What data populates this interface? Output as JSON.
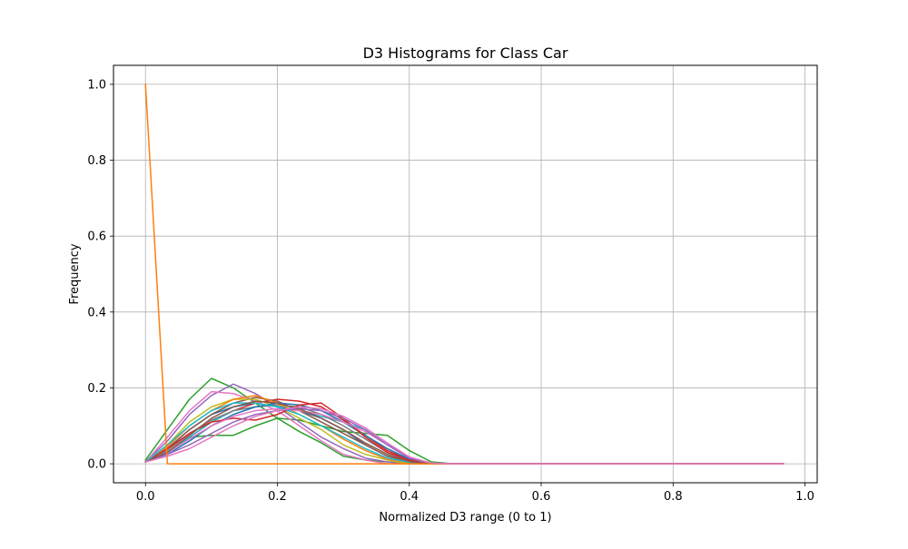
{
  "chart_data": {
    "type": "line",
    "title": "D3 Histograms for Class Car",
    "xlabel": "Normalized D3 range (0 to 1)",
    "ylabel": "Frequency",
    "xlim": [
      -0.0485,
      1.0185
    ],
    "ylim": [
      -0.05,
      1.05
    ],
    "xticks": [
      0.0,
      0.2,
      0.4,
      0.6,
      0.8,
      1.0
    ],
    "xtick_labels": [
      "0.0",
      "0.2",
      "0.4",
      "0.6",
      "0.8",
      "1.0"
    ],
    "yticks": [
      0.0,
      0.2,
      0.4,
      0.6,
      0.8,
      1.0
    ],
    "ytick_labels": [
      "0.0",
      "0.2",
      "0.4",
      "0.6",
      "0.8",
      "1.0"
    ],
    "grid": true,
    "legend": "none",
    "x": [
      0.0,
      0.0333,
      0.0667,
      0.1,
      0.1333,
      0.1667,
      0.2,
      0.2333,
      0.2667,
      0.3,
      0.3333,
      0.3667,
      0.4,
      0.4333,
      0.4667,
      0.5,
      0.5333,
      0.5667,
      0.6,
      0.6333,
      0.6667,
      0.7,
      0.7333,
      0.7667,
      0.8,
      0.8333,
      0.8667,
      0.9,
      0.9333,
      0.9667
    ],
    "series": [
      {
        "color": "#1f77b4",
        "values": [
          0.005,
          0.04,
          0.09,
          0.13,
          0.15,
          0.16,
          0.15,
          0.14,
          0.12,
          0.09,
          0.05,
          0.02,
          0.005,
          0,
          0,
          0,
          0,
          0,
          0,
          0,
          0,
          0,
          0,
          0,
          0,
          0,
          0,
          0,
          0,
          0
        ]
      },
      {
        "color": "#2ca02c",
        "values": [
          0.01,
          0.09,
          0.17,
          0.225,
          0.2,
          0.16,
          0.12,
          0.085,
          0.055,
          0.02,
          0.01,
          0.005,
          0,
          0,
          0,
          0,
          0,
          0,
          0,
          0,
          0,
          0,
          0,
          0,
          0,
          0,
          0,
          0,
          0,
          0
        ]
      },
      {
        "color": "#2ca02c",
        "values": [
          0.005,
          0.03,
          0.07,
          0.075,
          0.075,
          0.1,
          0.12,
          0.115,
          0.1,
          0.085,
          0.08,
          0.075,
          0.035,
          0.005,
          0,
          0,
          0,
          0,
          0,
          0,
          0,
          0,
          0,
          0,
          0,
          0,
          0,
          0,
          0,
          0
        ]
      },
      {
        "color": "#9467bd",
        "values": [
          0.005,
          0.06,
          0.13,
          0.18,
          0.21,
          0.185,
          0.15,
          0.11,
          0.07,
          0.04,
          0.015,
          0.005,
          0,
          0,
          0,
          0,
          0,
          0,
          0,
          0,
          0,
          0,
          0,
          0,
          0,
          0,
          0,
          0,
          0,
          0
        ]
      },
      {
        "color": "#d62728",
        "values": [
          0.005,
          0.03,
          0.07,
          0.11,
          0.14,
          0.16,
          0.17,
          0.165,
          0.15,
          0.115,
          0.075,
          0.035,
          0.01,
          0,
          0,
          0,
          0,
          0,
          0,
          0,
          0,
          0,
          0,
          0,
          0,
          0,
          0,
          0,
          0,
          0
        ]
      },
      {
        "color": "#e377c2",
        "values": [
          0.005,
          0.07,
          0.14,
          0.19,
          0.185,
          0.165,
          0.14,
          0.1,
          0.06,
          0.025,
          0.01,
          0,
          0,
          0,
          0,
          0,
          0,
          0,
          0,
          0,
          0,
          0,
          0,
          0,
          0,
          0,
          0,
          0,
          0,
          0
        ]
      },
      {
        "color": "#17becf",
        "values": [
          0.005,
          0.03,
          0.07,
          0.11,
          0.14,
          0.15,
          0.155,
          0.14,
          0.125,
          0.11,
          0.09,
          0.05,
          0.015,
          0,
          0,
          0,
          0,
          0,
          0,
          0,
          0,
          0,
          0,
          0,
          0,
          0,
          0,
          0,
          0,
          0
        ]
      },
      {
        "color": "#8c564b",
        "values": [
          0.005,
          0.04,
          0.09,
          0.13,
          0.16,
          0.175,
          0.165,
          0.14,
          0.11,
          0.08,
          0.05,
          0.02,
          0.005,
          0,
          0,
          0,
          0,
          0,
          0,
          0,
          0,
          0,
          0,
          0,
          0,
          0,
          0,
          0,
          0,
          0
        ]
      },
      {
        "color": "#bcbd22",
        "values": [
          0.005,
          0.05,
          0.11,
          0.15,
          0.17,
          0.17,
          0.15,
          0.12,
          0.09,
          0.05,
          0.025,
          0.01,
          0,
          0,
          0,
          0,
          0,
          0,
          0,
          0,
          0,
          0,
          0,
          0,
          0,
          0,
          0,
          0,
          0,
          0
        ]
      },
      {
        "color": "#7f7f7f",
        "values": [
          0.005,
          0.035,
          0.08,
          0.115,
          0.14,
          0.15,
          0.155,
          0.15,
          0.13,
          0.1,
          0.065,
          0.03,
          0.008,
          0,
          0,
          0,
          0,
          0,
          0,
          0,
          0,
          0,
          0,
          0,
          0,
          0,
          0,
          0,
          0,
          0
        ]
      },
      {
        "color": "#ff7f0e",
        "values": [
          0.005,
          0.045,
          0.1,
          0.14,
          0.17,
          0.18,
          0.16,
          0.13,
          0.1,
          0.065,
          0.035,
          0.012,
          0.003,
          0,
          0,
          0,
          0,
          0,
          0,
          0,
          0,
          0,
          0,
          0,
          0,
          0,
          0,
          0,
          0,
          0
        ]
      },
      {
        "color": "#1f77b4",
        "values": [
          0.005,
          0.025,
          0.06,
          0.1,
          0.13,
          0.15,
          0.16,
          0.155,
          0.14,
          0.11,
          0.075,
          0.04,
          0.012,
          0,
          0,
          0,
          0,
          0,
          0,
          0,
          0,
          0,
          0,
          0,
          0,
          0,
          0,
          0,
          0,
          0
        ]
      },
      {
        "color": "#d62728",
        "values": [
          0.005,
          0.04,
          0.08,
          0.11,
          0.12,
          0.115,
          0.13,
          0.155,
          0.16,
          0.12,
          0.07,
          0.03,
          0.01,
          0,
          0,
          0,
          0,
          0,
          0,
          0,
          0,
          0,
          0,
          0,
          0,
          0,
          0,
          0,
          0,
          0
        ]
      },
      {
        "color": "#e377c2",
        "values": [
          0.005,
          0.03,
          0.065,
          0.1,
          0.125,
          0.14,
          0.145,
          0.14,
          0.13,
          0.11,
          0.085,
          0.05,
          0.015,
          0,
          0,
          0,
          0,
          0,
          0,
          0,
          0,
          0,
          0,
          0,
          0,
          0,
          0,
          0,
          0,
          0
        ]
      },
      {
        "color": "#17becf",
        "values": [
          0.005,
          0.05,
          0.1,
          0.14,
          0.16,
          0.16,
          0.15,
          0.13,
          0.1,
          0.07,
          0.04,
          0.015,
          0.004,
          0,
          0,
          0,
          0,
          0,
          0,
          0,
          0,
          0,
          0,
          0,
          0,
          0,
          0,
          0,
          0,
          0
        ]
      },
      {
        "color": "#9467bd",
        "values": [
          0.005,
          0.025,
          0.05,
          0.08,
          0.11,
          0.13,
          0.14,
          0.145,
          0.14,
          0.12,
          0.09,
          0.05,
          0.015,
          0,
          0,
          0,
          0,
          0,
          0,
          0,
          0,
          0,
          0,
          0,
          0,
          0,
          0,
          0,
          0,
          0
        ]
      },
      {
        "color": "#8c564b",
        "values": [
          0.005,
          0.03,
          0.075,
          0.12,
          0.15,
          0.165,
          0.16,
          0.145,
          0.12,
          0.09,
          0.055,
          0.025,
          0.006,
          0,
          0,
          0,
          0,
          0,
          0,
          0,
          0,
          0,
          0,
          0,
          0,
          0,
          0,
          0,
          0,
          0
        ]
      },
      {
        "color": "#ff7f0e",
        "values": [
          1.0,
          0.0,
          0.0,
          0.0,
          0.0,
          0.0,
          0.0,
          0.0,
          0.0,
          0.0,
          0.0,
          0.0,
          0.0,
          0.0,
          0.0,
          0.0,
          0.0,
          0.0,
          0.0,
          0.0,
          0.0,
          0.0,
          0.0,
          0.0,
          0.0,
          0.0,
          0.0,
          0.0,
          0.0,
          0.0
        ]
      },
      {
        "color": "#e377c2",
        "values": [
          0.005,
          0.02,
          0.04,
          0.07,
          0.1,
          0.125,
          0.14,
          0.15,
          0.145,
          0.125,
          0.095,
          0.055,
          0.018,
          0.002,
          0,
          0,
          0,
          0,
          0,
          0,
          0,
          0,
          0,
          0,
          0,
          0,
          0,
          0,
          0,
          0
        ]
      }
    ]
  }
}
